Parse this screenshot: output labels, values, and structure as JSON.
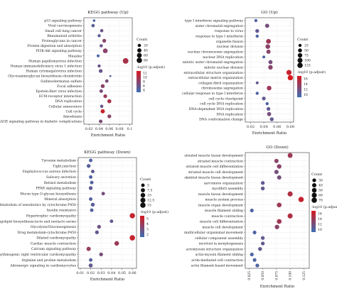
{
  "panels": [
    {
      "id": "kegg-up",
      "title": "KEGG pathway (Up)",
      "xlabel": "Enrichment Ratio",
      "count_legend_title": "Count",
      "color_legend_title": "-log10 (p.adjust)",
      "low_color": "#3b6fb6",
      "high_color": "#d7191c",
      "chart_data": {
        "type": "scatter",
        "title": "KEGG pathway (Up)",
        "xlabel": "Enrichment Ratio",
        "xlim": [
          0.01,
          0.105
        ],
        "xticks": [
          0.02,
          0.04,
          0.06,
          0.08,
          0.1
        ],
        "count_levels": [
          20,
          40,
          60,
          80
        ],
        "color_ticks": [
          4,
          6,
          8,
          10,
          12
        ],
        "color_range": [
          3,
          13
        ],
        "categories": [
          "p53 signaling pathway",
          "Viral carcinogenesis",
          "Small cell lung cancer",
          "Rheumatoid arthritis",
          "Proteoglycans in cancer",
          "Protein digestion and absorption",
          "PI3K-Akt signaling pathway",
          "Measles",
          "Human papillomavirus infection",
          "Human immunodeficiency virus 1 infection",
          "Human cytomegalovirus infection",
          "Glycosaminoglycan biosynthesis-chondroitin",
          "Sulfate/dermatan sulfate",
          "Focal adhesion",
          "Epstein-Barr virus infection",
          "ECM-receptor interaction",
          "DNA replication",
          "Cellular senescence",
          "Cell cycle",
          "Amoebiasis",
          "AGE-RAGE signaling pathway in diabetic complications"
        ],
        "series": [
          {
            "x": [
              0.03,
              0.028,
              0.045,
              0.04,
              0.05,
              0.044,
              0.052,
              0.038,
              0.092,
              0.04,
              0.043,
              0.062,
              0.055,
              0.047,
              0.044,
              0.052,
              0.06,
              0.045,
              0.047,
              0.06,
              0.043
            ],
            "count": [
              12,
              22,
              20,
              18,
              30,
              20,
              55,
              16,
              90,
              18,
              30,
              10,
              22,
              32,
              24,
              28,
              35,
              20,
              40,
              30,
              25
            ],
            "padj": [
              4,
              5,
              6,
              5,
              8,
              6,
              8,
              4,
              10,
              6,
              6,
              5,
              7,
              8,
              7,
              9,
              10,
              6,
              12,
              8,
              7
            ]
          }
        ]
      }
    },
    {
      "id": "go-up",
      "title": "GO (Up)",
      "xlabel": "Enrichment Ratio",
      "count_legend_title": "Count",
      "color_legend_title": "-log10 (p.adjust)",
      "low_color": "#3b6fb6",
      "high_color": "#d7191c",
      "chart_data": {
        "type": "scatter",
        "title": "GO (Up)",
        "xlabel": "Enrichment Ratio",
        "xlim": [
          0.012,
          0.085
        ],
        "xticks": [
          0.02,
          0.04,
          0.06,
          0.08
        ],
        "count_levels": [
          25,
          50,
          75,
          100,
          125
        ],
        "color_ticks": [
          10,
          12,
          14,
          16
        ],
        "color_range": [
          9,
          17
        ],
        "categories": [
          "type I interferon signaling pathway",
          "sister chromatid segregation",
          "response to virus",
          "response to type I interferon",
          "organelle fission",
          "nuclear division",
          "nuclear chromosome segregation",
          "nuclear DNA replication",
          "mitotic sister chromatid segregation",
          "mitotic nuclear division",
          "extracellular structure organization",
          "extracellular matrix organization",
          "collagen fibril organization",
          "chromosome segregation",
          "cellular response to type I interferon",
          "cell cycle checkpoint",
          "cell cycle DNA replication",
          "DNA-dependent DNA replication",
          "DNA replication",
          "DNA conformation change"
        ],
        "series": [
          {
            "x": [
              0.028,
              0.045,
              0.03,
              0.03,
              0.047,
              0.046,
              0.047,
              0.04,
              0.05,
              0.05,
              0.078,
              0.08,
              0.03,
              0.048,
              0.03,
              0.04,
              0.045,
              0.047,
              0.048,
              0.052
            ],
            "count": [
              25,
              60,
              45,
              25,
              90,
              80,
              60,
              20,
              55,
              75,
              110,
              115,
              20,
              80,
              25,
              40,
              25,
              40,
              55,
              45
            ],
            "padj": [
              10,
              12,
              11,
              10,
              14,
              13,
              13,
              10,
              12,
              13,
              16,
              17,
              11,
              14,
              10,
              11,
              10,
              11,
              12,
              11
            ]
          }
        ]
      }
    },
    {
      "id": "kegg-down",
      "title": "KEGG pathway (Down)",
      "xlabel": "Enrichment Ratio",
      "count_legend_title": "Count",
      "color_legend_title": "-log10 (p.adjust)",
      "low_color": "#3b6fb6",
      "high_color": "#d7191c",
      "chart_data": {
        "type": "scatter",
        "title": "KEGG pathway (Down)",
        "xlabel": "Enrichment Ratio",
        "xlim": [
          0.008,
          0.064
        ],
        "xticks": [
          0.01,
          0.02,
          0.03,
          0.04,
          0.05,
          0.06
        ],
        "count_levels": [
          5.0,
          7.5,
          10.0,
          12.5,
          15.0
        ],
        "color_ticks": [
          2,
          3,
          4,
          5
        ],
        "color_range": [
          1.5,
          5.5
        ],
        "categories": [
          "Tyrosine metabolism",
          "Tight junction",
          "Staphylococcus aureus infection",
          "Salivary secretion",
          "Retinol metabolism",
          "PPAR signaling pathway",
          "Mucin type O-glycan biosynthesis",
          "Mineral absorption",
          "Metabolism of xenobiotics by cytochrome P450",
          "Insulin resistance",
          "Hypertrophic cardiomyopathy",
          "Glycosphingolipid biosynthesis-lacto and neolacto series",
          "Glycolysis/Gluconeogenesis",
          "Drug metabolism-cytochrome P450",
          "Dilated cardiomyopathy",
          "Cardiac muscle contraction",
          "Calcium signaling pathway",
          "Arrhythmogenic right ventricular cardiomyopathy",
          "Arginine and proline metabolism",
          "Adrenergic signaling in cardiomyocytes"
        ],
        "series": [
          {
            "x": [
              0.02,
              0.018,
              0.022,
              0.02,
              0.021,
              0.02,
              0.032,
              0.02,
              0.022,
              0.021,
              0.06,
              0.04,
              0.028,
              0.026,
              0.06,
              0.045,
              0.018,
              0.03,
              0.02,
              0.02
            ],
            "count": [
              5,
              6,
              5,
              5,
              5,
              6,
              5,
              5,
              6,
              5,
              14,
              5,
              6,
              6,
              15,
              10,
              8,
              6,
              5,
              7
            ],
            "padj": [
              2,
              2.2,
              2.5,
              2,
              2.1,
              2.4,
              3,
              2.2,
              2.3,
              2.1,
              5,
              2.5,
              2.8,
              2.6,
              5,
              4,
              3.8,
              3,
              2.2,
              2.5
            ]
          }
        ]
      }
    },
    {
      "id": "go-down",
      "title": "GO (Down)",
      "xlabel": "Enrichment Ratio",
      "count_legend_title": "Count",
      "color_legend_title": "-log10 (p.adjust)",
      "low_color": "#3b6fb6",
      "high_color": "#d7191c",
      "chart_data": {
        "type": "scatter",
        "title": "GO (Down)",
        "xlabel": "Enrichment Ratio",
        "xlim": [
          0.018,
          0.135
        ],
        "xticks": [
          0.025,
          0.05,
          0.075,
          0.1,
          0.125
        ],
        "xtick_labels": [
          "0.025",
          "0.050",
          "0.075",
          "0.100",
          "0.125"
        ],
        "count_levels": [
          30,
          40,
          50,
          60,
          70
        ],
        "color_ticks": [
          10,
          12,
          14,
          16
        ],
        "color_range": [
          9,
          17
        ],
        "categories": [
          "striated muscle tissue development",
          "striated muscle contraction",
          "striated muscle cell differentiation",
          "striated muscle cell development",
          "skeletal muscle tissue development",
          "sarcomere organization",
          "myofibril assembly",
          "muscle tissue development",
          "muscle system process",
          "muscle organ development",
          "muscle filament sliding",
          "muscle contraction",
          "muscle cell differentiation",
          "muscle cell development",
          "multicellular organismal movement",
          "cellular component assembly",
          "involved in morphogenesis",
          "actomyosin structure organization",
          "actin-myosin filament sliding",
          "actin-mediated cell contraction",
          "actin filament-based movement"
        ],
        "series": [
          {
            "x": [
              0.1,
              0.075,
              0.08,
              0.075,
              0.08,
              0.05,
              0.05,
              0.1,
              0.12,
              0.08,
              0.03,
              0.1,
              0.08,
              0.076,
              0.035,
              0.05,
              0.05,
              0.045,
              0.03,
              0.035,
              0.04
            ],
            "count": [
              55,
              40,
              45,
              40,
              40,
              30,
              32,
              60,
              70,
              50,
              28,
              60,
              52,
              45,
              28,
              30,
              30,
              32,
              28,
              28,
              30
            ],
            "padj": [
              14,
              13,
              13,
              12,
              12,
              11,
              11,
              15,
              16,
              14,
              10,
              15,
              14,
              13,
              10,
              11,
              11,
              11,
              10,
              10,
              10
            ]
          }
        ]
      }
    }
  ]
}
